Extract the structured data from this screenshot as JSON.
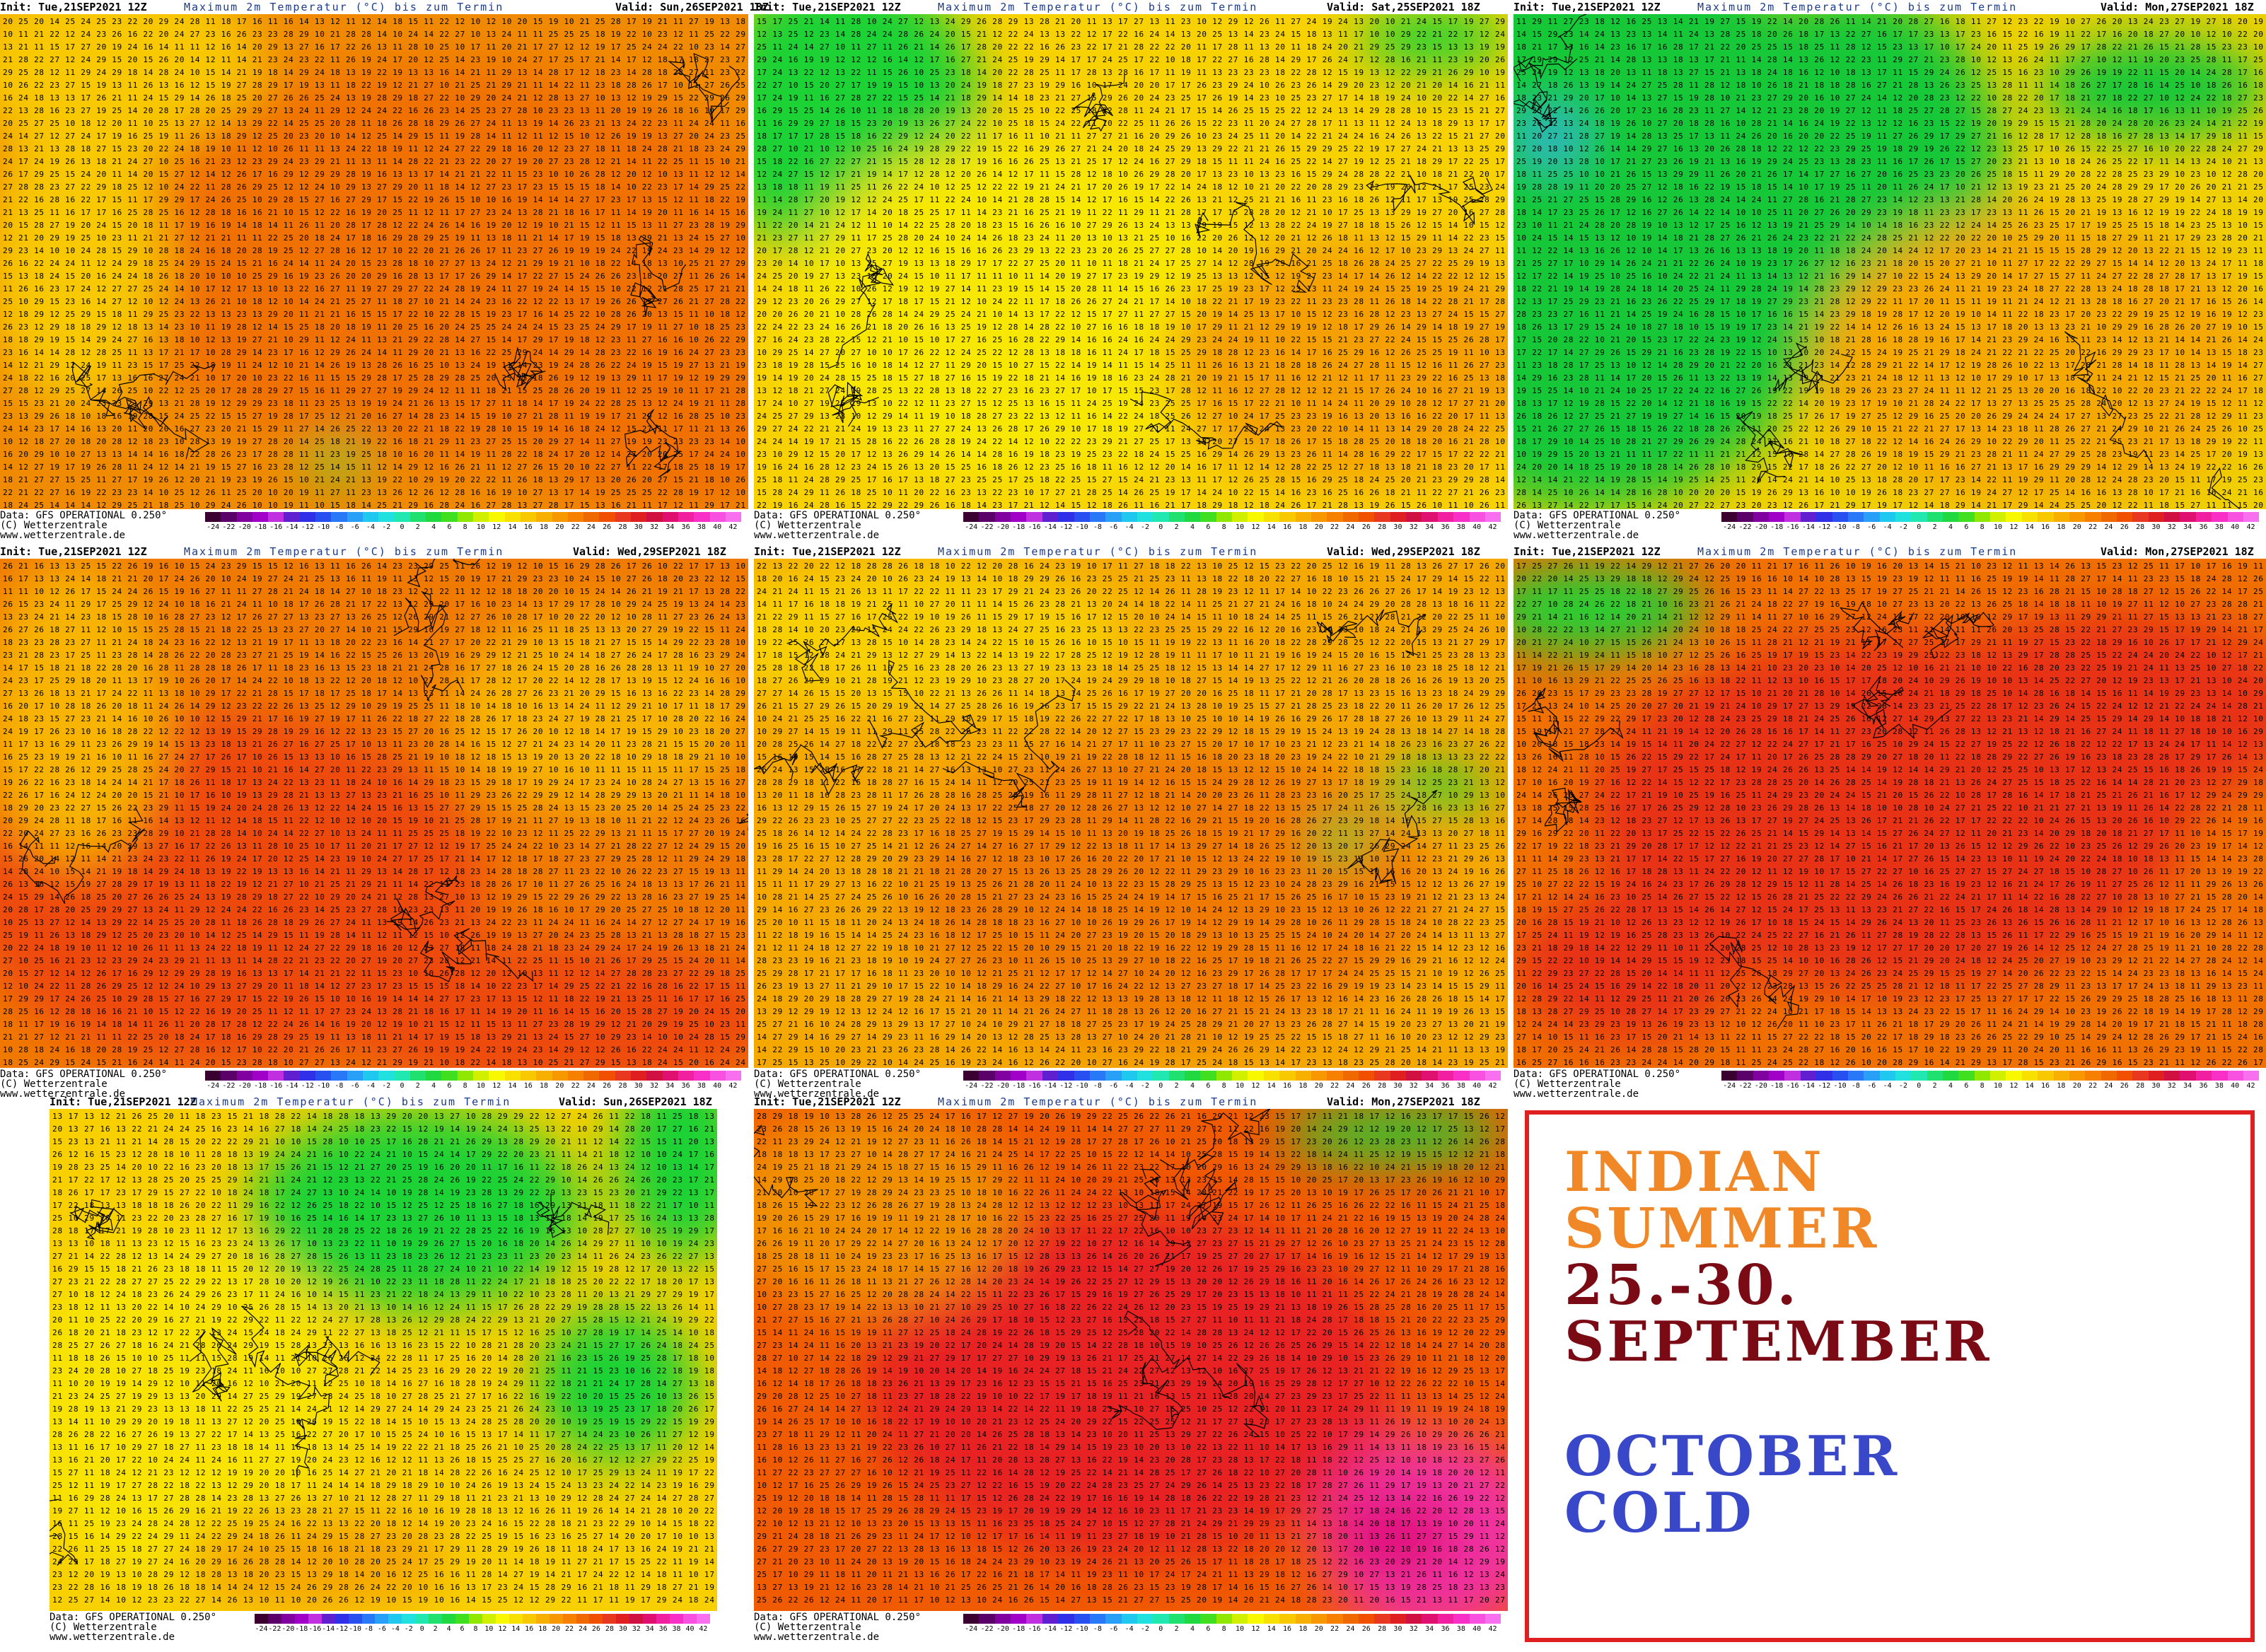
{
  "panels": [
    {
      "id": "p1",
      "init": "Init: Tue,21SEP2021 12Z",
      "title": "Maximum 2m Temperatur (°C) bis zum Termin",
      "valid": "Valid: Sun,26SEP2021 18Z",
      "data": "Data: GFS OPERATIONAL 0.250°",
      "copyright": "(C) Wetterzentrale",
      "site": "www.wetterzentrale.de",
      "region": "france-uk",
      "colors": {
        "base": "#f08a00",
        "warm": "#f07000",
        "cool": "#f8c800",
        "green": "#1ed236"
      }
    },
    {
      "id": "p2",
      "init": "Init: Tue,21SEP2021 12Z",
      "title": "Maximum 2m Temperatur (°C) bis zum Termin",
      "valid": "Valid: Sat,25SEP2021 18Z",
      "data": "Data: GFS OPERATIONAL 0.250°",
      "copyright": "(C) Wetterzentrale",
      "site": "www.wetterzentrale.de",
      "region": "uk",
      "colors": {
        "base": "#f8d200",
        "warm": "#f5a000",
        "cool": "#f8e800",
        "green": "#1ed236"
      }
    },
    {
      "id": "p3",
      "init": "Init: Tue,21SEP2021 12Z",
      "title": "Maximum 2m Temperatur (°C) bis zum Termin",
      "valid": "Valid: Mon,27SEP2021 18Z",
      "data": "Data: GFS OPERATIONAL 0.250°",
      "copyright": "(C) Wetterzentrale",
      "site": "www.wetterzentrale.de",
      "region": "scandinavia",
      "colors": {
        "base": "#f0d000",
        "warm": "#f5a800",
        "cool": "#22d840",
        "green": "#16c838"
      }
    },
    {
      "id": "p4",
      "init": "Init: Tue,21SEP2021 12Z",
      "title": "Maximum 2m Temperatur (°C) bis zum Termin",
      "valid": "Valid: Wed,29SEP2021 18Z",
      "data": "Data: GFS OPERATIONAL 0.250°",
      "copyright": "(C) Wetterzentrale",
      "site": "www.wetterzentrale.de",
      "region": "iberia",
      "colors": {
        "base": "#f07a00",
        "warm": "#ee4a10",
        "cool": "#f8b400",
        "green": "#1ed236"
      }
    },
    {
      "id": "p5",
      "init": "Init: Tue,21SEP2021 12Z",
      "title": "Maximum 2m Temperatur (°C) bis zum Termin",
      "valid": "Valid: Wed,29SEP2021 18Z",
      "data": "Data: GFS OPERATIONAL 0.250°",
      "copyright": "(C) Wetterzentrale",
      "site": "www.wetterzentrale.de",
      "region": "france",
      "colors": {
        "base": "#f5a800",
        "warm": "#f07a00",
        "cool": "#f8d000",
        "green": "#1ed236"
      }
    },
    {
      "id": "p6",
      "init": "Init: Tue,21SEP2021 12Z",
      "title": "Maximum 2m Temperatur (°C) bis zum Termin",
      "valid": "Valid: Mon,27SEP2021 18Z",
      "data": "Data: GFS OPERATIONAL 0.250°",
      "copyright": "(C) Wetterzentrale",
      "site": "www.wetterzentrale.de",
      "region": "italy-balkans",
      "colors": {
        "base": "#f07000",
        "warm": "#e83218",
        "cool": "#f5a000",
        "green": "#1ed236"
      }
    },
    {
      "id": "p7",
      "init": "Init: Tue,21SEP2021 12Z",
      "title": "Maximum 2m Temperatur (°C) bis zum Termin",
      "valid": "Valid: Sun,26SEP2021 18Z",
      "data": "Data: GFS OPERATIONAL 0.250°",
      "copyright": "(C) Wetterzentrale",
      "site": "www.wetterzentrale.de",
      "region": "central-europe",
      "colors": {
        "base": "#f8d000",
        "warm": "#f5a400",
        "cool": "#f8e400",
        "green": "#1ed236"
      }
    },
    {
      "id": "p8",
      "init": "Init: Tue,21SEP2021 12Z",
      "title": "Maximum 2m Temperatur (°C) bis zum Termin",
      "valid": "Valid: Mon,27SEP2021 18Z",
      "data": "Data: GFS OPERATIONAL 0.250°",
      "copyright": "(C) Wetterzentrale",
      "site": "www.wetterzentrale.de",
      "region": "mediterranean",
      "colors": {
        "base": "#f05a00",
        "warm": "#e82020",
        "cool": "#f09000",
        "green": "#1ed236"
      }
    }
  ],
  "scale": {
    "labels": [
      "-24",
      "-22",
      "-20",
      "-18",
      "-16",
      "-14",
      "-12",
      "-10",
      "-8",
      "-6",
      "-4",
      "-2",
      "0",
      "2",
      "4",
      "6",
      "8",
      "10",
      "12",
      "14",
      "16",
      "18",
      "20",
      "22",
      "24",
      "26",
      "28",
      "30",
      "32",
      "34",
      "36",
      "38",
      "40",
      "42"
    ],
    "colors": [
      "#3a0030",
      "#5a0068",
      "#8000a0",
      "#a000c8",
      "#c030e0",
      "#6020d0",
      "#3030e8",
      "#2850f0",
      "#2878f8",
      "#28a0f8",
      "#20c8f0",
      "#20e0e0",
      "#20e8b0",
      "#20e070",
      "#20d840",
      "#40e020",
      "#90e800",
      "#d0f000",
      "#f8f800",
      "#f8e000",
      "#f8c800",
      "#f8b000",
      "#f89800",
      "#f88000",
      "#f06800",
      "#f05000",
      "#e83820",
      "#e02020",
      "#d01040",
      "#e01070",
      "#f020a0",
      "#f830c8",
      "#f850e0",
      "#f870f0"
    ]
  },
  "message": {
    "line1": "INDIAN",
    "line2": "SUMMER",
    "line3": "25.-30.",
    "line4": "SEPTEMBER",
    "line5": "OCTOBER",
    "line6": "COLD",
    "colors": {
      "summer": "#f08828",
      "dates": "#7a0a14",
      "cold": "#3848c8"
    }
  }
}
